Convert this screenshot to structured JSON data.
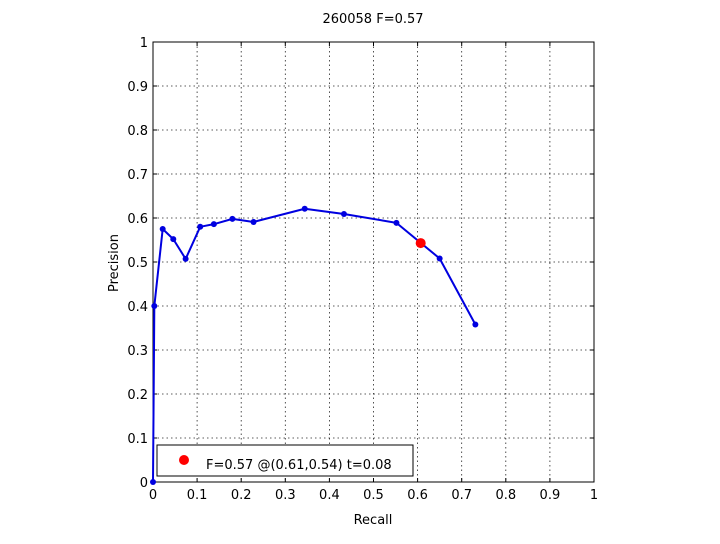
{
  "chart_data": {
    "type": "line",
    "title": "260058 F=0.57",
    "xlabel": "Recall",
    "ylabel": "Precision",
    "xlim": [
      0,
      1
    ],
    "ylim": [
      0,
      1
    ],
    "grid": true,
    "x_ticks": [
      "0",
      "0.1",
      "0.2",
      "0.3",
      "0.4",
      "0.5",
      "0.6",
      "0.7",
      "0.8",
      "0.9",
      "1"
    ],
    "y_ticks": [
      "0",
      "0.1",
      "0.2",
      "0.3",
      "0.4",
      "0.5",
      "0.6",
      "0.7",
      "0.8",
      "0.9",
      "1"
    ],
    "series": [
      {
        "color": "#0000e0",
        "marker": "dot",
        "points": [
          [
            0.0,
            0.0
          ],
          [
            0.003,
            0.4
          ],
          [
            0.022,
            0.575
          ],
          [
            0.046,
            0.552
          ],
          [
            0.074,
            0.507
          ],
          [
            0.107,
            0.58
          ],
          [
            0.138,
            0.586
          ],
          [
            0.18,
            0.598
          ],
          [
            0.228,
            0.591
          ],
          [
            0.344,
            0.621
          ],
          [
            0.433,
            0.609
          ],
          [
            0.552,
            0.589
          ],
          [
            0.65,
            0.508
          ],
          [
            0.731,
            0.358
          ]
        ]
      }
    ],
    "best_point": {
      "x": 0.607,
      "y": 0.543,
      "color": "#ff0000"
    },
    "legend": {
      "position": "bottom-left",
      "label": "F=0.57 @(0.61,0.54) t=0.08"
    }
  }
}
